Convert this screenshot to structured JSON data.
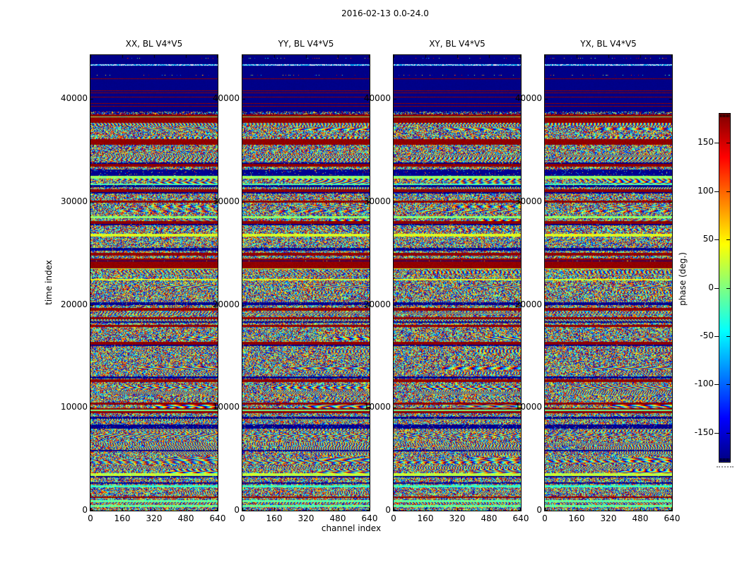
{
  "figure": {
    "background": "#ffffff",
    "text_color": "#000000"
  },
  "chart_data": {
    "type": "heatmap",
    "title": "2016-02-13 0.0-24.0",
    "panels": [
      {
        "label": "XX, BL V4*V5"
      },
      {
        "label": "YY, BL V4*V5"
      },
      {
        "label": "XY, BL V4*V5"
      },
      {
        "label": "YX, BL V4*V5"
      }
    ],
    "xlabel": "channel index",
    "ylabel": "time index",
    "x_range": [
      0,
      640
    ],
    "y_range": [
      0,
      44250
    ],
    "x_ticks": [
      0,
      160,
      320,
      480,
      640
    ],
    "y_ticks": [
      0,
      10000,
      20000,
      30000,
      40000
    ],
    "grid": false,
    "colorbar": {
      "label": "phase (deg.)",
      "range": [
        -180,
        180
      ],
      "ticks": [
        150,
        100,
        50,
        0,
        -50,
        -100,
        -150
      ],
      "colormap": "jet",
      "gradient_top_to_bottom": [
        "#800000",
        "#ff0000",
        "#ffff00",
        "#00ffff",
        "#0000ff",
        "#000080"
      ],
      "gradient_stops_pct": [
        0,
        12.5,
        37.5,
        62.5,
        87.5,
        100
      ]
    },
    "render": {
      "struct_seed": 42,
      "pixel_seed": 1337,
      "quiet_top": {
        "rows": 80,
        "base_phase": -177,
        "dot_rows": [
          4,
          28
        ],
        "cyan_rows": [
          13,
          14
        ],
        "maroon_rows": [
          33,
          50,
          53,
          59,
          68,
          72
        ],
        "transition_rows": 4
      },
      "maroon_bands": [
        [
          88,
          95
        ],
        [
          119,
          126
        ],
        [
          154,
          157
        ],
        [
          292,
          301
        ],
        [
          459,
          462
        ]
      ],
      "navy_bands": [
        [
          162,
          167
        ],
        [
          350,
          353
        ]
      ],
      "row_type_weights": {
        "fringe": 0.26,
        "calm": 0.1,
        "navy_row": 0.07,
        "maroon_row": 0.07,
        "speckle": 0.5
      }
    }
  }
}
